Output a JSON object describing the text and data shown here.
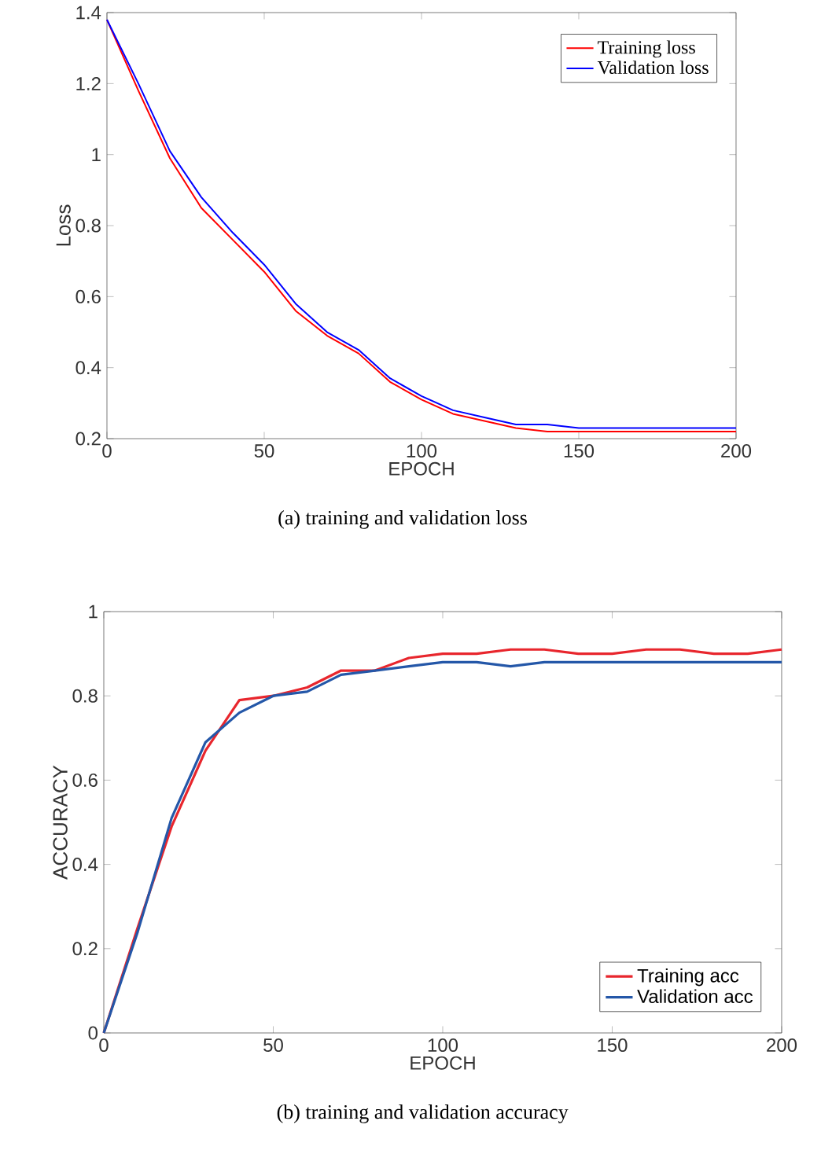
{
  "chart_data": [
    {
      "type": "line",
      "xlabel": "EPOCH",
      "ylabel": "Loss",
      "annotations": [
        "(a) training and validation loss"
      ],
      "x": [
        0,
        10,
        20,
        30,
        40,
        50,
        60,
        70,
        80,
        90,
        100,
        110,
        120,
        130,
        140,
        150,
        160,
        170,
        180,
        190,
        200
      ],
      "xlim": [
        0,
        200
      ],
      "xticks": [
        0,
        50,
        100,
        150,
        200
      ],
      "ylim": [
        0.2,
        1.4
      ],
      "yticks": [
        0.2,
        0.4,
        0.6,
        0.8,
        1,
        1.2,
        1.4
      ],
      "legend": "top right",
      "grid": false,
      "marker": "none",
      "line_style": "solid",
      "series": [
        {
          "name": "Training loss",
          "color": "#ff0000",
          "values": [
            1.38,
            1.18,
            0.99,
            0.85,
            0.76,
            0.67,
            0.56,
            0.49,
            0.44,
            0.36,
            0.31,
            0.27,
            0.25,
            0.23,
            0.22,
            0.22,
            0.22,
            0.22,
            0.22,
            0.22,
            0.22
          ]
        },
        {
          "name": "Validation loss",
          "color": "#0000ff",
          "values": [
            1.38,
            1.2,
            1.01,
            0.88,
            0.78,
            0.69,
            0.58,
            0.5,
            0.45,
            0.37,
            0.32,
            0.28,
            0.26,
            0.24,
            0.24,
            0.23,
            0.23,
            0.23,
            0.23,
            0.23,
            0.23
          ]
        }
      ]
    },
    {
      "type": "line",
      "xlabel": "EPOCH",
      "ylabel": "ACCURACY",
      "annotations": [
        "(b) training and validation accuracy"
      ],
      "x": [
        0,
        10,
        20,
        30,
        40,
        50,
        60,
        70,
        80,
        90,
        100,
        110,
        120,
        130,
        140,
        150,
        160,
        170,
        180,
        190,
        200
      ],
      "xlim": [
        0,
        200
      ],
      "xticks": [
        0,
        50,
        100,
        150,
        200
      ],
      "ylim": [
        0,
        1
      ],
      "yticks": [
        0,
        0.2,
        0.4,
        0.6,
        0.8,
        1
      ],
      "legend": "bottom right",
      "grid": false,
      "marker": "none",
      "line_style": "solid",
      "series": [
        {
          "name": "Training acc",
          "color": "#e8262d",
          "values": [
            0,
            0.25,
            0.49,
            0.67,
            0.79,
            0.8,
            0.82,
            0.86,
            0.86,
            0.89,
            0.9,
            0.9,
            0.91,
            0.91,
            0.9,
            0.9,
            0.91,
            0.91,
            0.9,
            0.9,
            0.91
          ]
        },
        {
          "name": "Validation acc",
          "color": "#2457a8",
          "values": [
            0,
            0.24,
            0.51,
            0.69,
            0.76,
            0.8,
            0.81,
            0.85,
            0.86,
            0.87,
            0.88,
            0.88,
            0.87,
            0.88,
            0.88,
            0.88,
            0.88,
            0.88,
            0.88,
            0.88,
            0.88
          ]
        }
      ]
    }
  ]
}
